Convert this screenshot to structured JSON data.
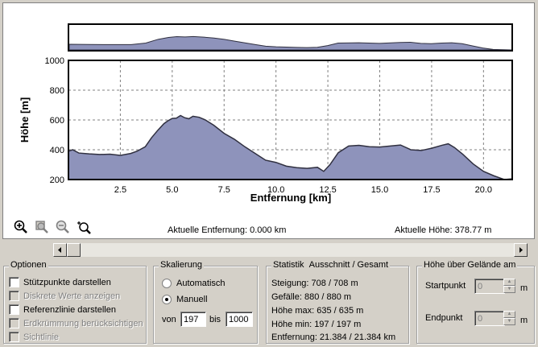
{
  "chart_data": [
    {
      "type": "area",
      "role": "overview",
      "x": [
        0,
        1,
        2,
        3,
        3.7,
        4.3,
        4.8,
        5.2,
        5.6,
        6.0,
        6.5,
        7.0,
        7.5,
        8.0,
        9.0,
        9.5,
        10.0,
        11.0,
        11.5,
        12.0,
        12.5,
        13.0,
        14.0,
        15.0,
        16.0,
        16.5,
        17.0,
        17.5,
        18.0,
        18.5,
        19.0,
        19.5,
        20.0,
        20.5,
        21.384
      ],
      "y": [
        380,
        375,
        370,
        372,
        420,
        540,
        600,
        625,
        615,
        630,
        610,
        580,
        540,
        480,
        370,
        320,
        300,
        280,
        275,
        285,
        340,
        420,
        430,
        410,
        440,
        445,
        410,
        400,
        420,
        430,
        400,
        330,
        260,
        215,
        200
      ],
      "ylim": [
        200,
        1000
      ]
    },
    {
      "type": "area",
      "role": "detail",
      "xlabel": "Entfernung [km]",
      "ylabel": "Höhe [m]",
      "xticks": [
        "2.5",
        "5.0",
        "7.5",
        "10.0",
        "12.5",
        "15.0",
        "17.5",
        "20.0"
      ],
      "yticks": [
        "200",
        "400",
        "600",
        "800",
        "1000"
      ],
      "xlim": [
        0,
        21.384
      ],
      "ylim": [
        200,
        1000
      ],
      "grid": true,
      "x": [
        0,
        0.2,
        0.5,
        1,
        1.5,
        2,
        2.5,
        3,
        3.3,
        3.7,
        4.0,
        4.3,
        4.6,
        4.8,
        5.0,
        5.2,
        5.4,
        5.6,
        5.8,
        6.0,
        6.3,
        6.6,
        7.0,
        7.5,
        8.0,
        8.5,
        9.0,
        9.5,
        10.0,
        10.5,
        11.0,
        11.5,
        12.0,
        12.3,
        12.6,
        13.0,
        13.5,
        14.0,
        14.5,
        15.0,
        15.5,
        16.0,
        16.5,
        17.0,
        17.5,
        18.0,
        18.3,
        18.6,
        19.0,
        19.5,
        20.0,
        20.5,
        21.0,
        21.384
      ],
      "y": [
        390,
        400,
        378,
        372,
        368,
        370,
        362,
        375,
        390,
        420,
        480,
        530,
        575,
        595,
        610,
        612,
        630,
        615,
        608,
        625,
        618,
        600,
        565,
        510,
        470,
        420,
        375,
        330,
        315,
        290,
        280,
        275,
        282,
        255,
        300,
        380,
        425,
        430,
        420,
        418,
        425,
        432,
        400,
        395,
        410,
        430,
        440,
        415,
        370,
        305,
        255,
        225,
        200,
        205
      ]
    }
  ],
  "toolbar": {
    "icons": [
      "zoom-in-icon",
      "zoom-region-icon",
      "zoom-out-icon",
      "zoom-reset-icon"
    ],
    "current_distance": "Aktuelle Entfernung: 0.000 km",
    "current_height": "Aktuelle Höhe: 378.77 m"
  },
  "options": {
    "title": "Optionen",
    "items": [
      {
        "label": "Stützpunkte darstellen",
        "checked": false,
        "enabled": true
      },
      {
        "label": "Diskrete Werte anzeigen",
        "checked": false,
        "enabled": false
      },
      {
        "label": "Referenzlinie darstellen",
        "checked": false,
        "enabled": true
      },
      {
        "label": "Erdkrümmung berücksichtigen",
        "checked": false,
        "enabled": false
      },
      {
        "label": "Sichtlinie",
        "checked": false,
        "enabled": false
      }
    ]
  },
  "scaling": {
    "title": "Skalierung",
    "auto_label": "Automatisch",
    "manual_label": "Manuell",
    "selected": "Manuell",
    "from_label": "von",
    "from_value": "197",
    "to_label": "bis",
    "to_value": "1000"
  },
  "stats": {
    "title": "Statistik",
    "subtitle": "Ausschnitt / Gesamt",
    "lines": [
      "Steigung: 708 / 708 m",
      "Gefälle: 880 / 880 m",
      "Höhe max: 635 / 635 m",
      "Höhe min: 197 / 197 m",
      "Entfernung: 21.384 / 21.384 km"
    ]
  },
  "terrain": {
    "title": "Höhe über Gelände am",
    "start_label": "Startpunkt",
    "start_value": "0",
    "start_unit": "m",
    "end_label": "Endpunkt",
    "end_value": "0",
    "end_unit": "m"
  },
  "colors": {
    "fill": "#8e93bb",
    "line": "#303040",
    "grid": "#808080"
  }
}
